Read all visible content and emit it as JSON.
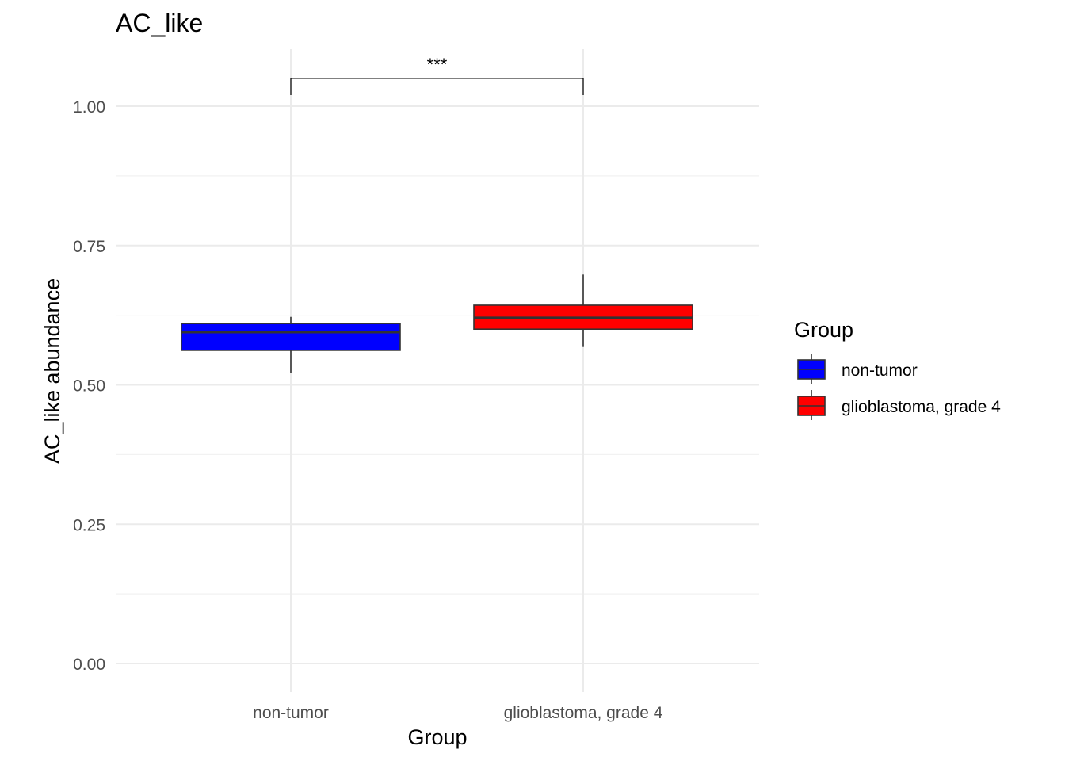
{
  "chart_data": {
    "type": "box",
    "title": "AC_like",
    "xlabel": "Group",
    "ylabel": "AC_like abundance",
    "ylim": [
      -0.05,
      1.1
    ],
    "y_ticks": [
      0.0,
      0.25,
      0.5,
      0.75,
      1.0
    ],
    "y_tick_labels": [
      "0.00",
      "0.25",
      "0.50",
      "0.75",
      "1.00"
    ],
    "grid": true,
    "categories": [
      "non-tumor",
      "glioblastoma, grade 4"
    ],
    "boxes": [
      {
        "category": "non-tumor",
        "whisker_low": 0.522,
        "q1": 0.562,
        "median": 0.595,
        "q3": 0.61,
        "whisker_high": 0.622,
        "color": "#0000ff"
      },
      {
        "category": "glioblastoma, grade 4",
        "whisker_low": 0.568,
        "q1": 0.6,
        "median": 0.62,
        "q3": 0.643,
        "whisker_high": 0.698,
        "color": "#ff0000"
      }
    ],
    "significance": {
      "from": "non-tumor",
      "to": "glioblastoma, grade 4",
      "label": "***",
      "y": 1.05
    },
    "legend": {
      "title": "Group",
      "position": "right",
      "entries": [
        {
          "label": "non-tumor",
          "color": "#0000ff"
        },
        {
          "label": "glioblastoma, grade 4",
          "color": "#ff0000"
        }
      ]
    }
  }
}
